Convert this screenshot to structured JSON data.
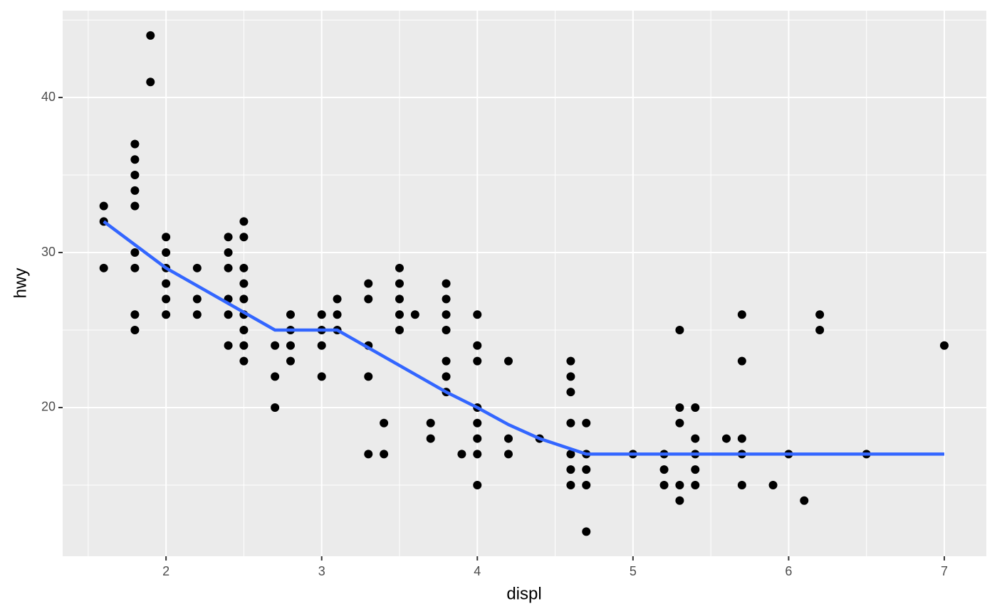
{
  "chart_data": {
    "type": "scatter",
    "x_label": "displ",
    "y_label": "hwy",
    "xlim": [
      1.336,
      7.27
    ],
    "ylim": [
      10.41,
      45.6
    ],
    "xticks": [
      2,
      3,
      4,
      5,
      6,
      7
    ],
    "yticks": [
      20,
      30,
      40
    ],
    "xminor": [
      1.5,
      2.5,
      3.5,
      4.5,
      5.5,
      6.5
    ],
    "yminor": [
      15,
      25,
      35,
      45
    ],
    "grid": true,
    "series": [
      {
        "type": "scatter",
        "color": "#000000",
        "x": [
          1.6,
          1.6,
          1.6,
          1.8,
          1.8,
          1.8,
          1.8,
          1.8,
          1.8,
          1.8,
          1.8,
          1.8,
          1.9,
          1.9,
          2.0,
          2.0,
          2.0,
          2.0,
          2.0,
          2.0,
          2.2,
          2.2,
          2.2,
          2.4,
          2.4,
          2.4,
          2.4,
          2.4,
          2.4,
          2.5,
          2.5,
          2.5,
          2.5,
          2.5,
          2.5,
          2.5,
          2.5,
          2.5,
          2.7,
          2.7,
          2.7,
          2.8,
          2.8,
          2.8,
          2.8,
          3.0,
          3.0,
          3.0,
          3.0,
          3.1,
          3.1,
          3.1,
          3.3,
          3.3,
          3.3,
          3.3,
          3.3,
          3.4,
          3.4,
          3.5,
          3.5,
          3.5,
          3.5,
          3.5,
          3.6,
          3.7,
          3.7,
          3.8,
          3.8,
          3.8,
          3.8,
          3.8,
          3.8,
          3.8,
          3.9,
          4.0,
          4.0,
          4.0,
          4.0,
          4.0,
          4.0,
          4.0,
          4.0,
          4.2,
          4.2,
          4.2,
          4.4,
          4.6,
          4.6,
          4.6,
          4.6,
          4.6,
          4.6,
          4.6,
          4.7,
          4.7,
          4.7,
          4.7,
          4.7,
          5.0,
          5.2,
          5.2,
          5.2,
          5.3,
          5.3,
          5.3,
          5.3,
          5.3,
          5.4,
          5.4,
          5.4,
          5.4,
          5.4,
          5.6,
          5.7,
          5.7,
          5.7,
          5.7,
          5.7,
          5.9,
          6.0,
          6.1,
          6.2,
          6.2,
          6.5,
          7.0
        ],
        "values": [
          33,
          32,
          29,
          37,
          36,
          35,
          34,
          33,
          30,
          29,
          26,
          25,
          44,
          41,
          31,
          30,
          29,
          28,
          27,
          26,
          29,
          27,
          26,
          31,
          30,
          29,
          27,
          26,
          24,
          32,
          31,
          29,
          28,
          27,
          26,
          25,
          24,
          23,
          24,
          22,
          20,
          26,
          25,
          24,
          23,
          26,
          25,
          24,
          22,
          27,
          26,
          25,
          28,
          27,
          24,
          22,
          17,
          19,
          17,
          29,
          28,
          27,
          26,
          25,
          26,
          19,
          18,
          28,
          27,
          26,
          25,
          23,
          22,
          21,
          17,
          26,
          24,
          23,
          20,
          19,
          18,
          17,
          15,
          23,
          18,
          17,
          18,
          23,
          22,
          21,
          19,
          17,
          16,
          15,
          19,
          17,
          16,
          15,
          12,
          17,
          17,
          16,
          15,
          25,
          20,
          19,
          15,
          14,
          20,
          18,
          17,
          16,
          15,
          18,
          26,
          23,
          18,
          17,
          15,
          15,
          17,
          14,
          26,
          25,
          17,
          24
        ]
      },
      {
        "type": "line",
        "color": "#3366ff",
        "x": [
          1.6,
          2.0,
          2.7,
          3.1,
          3.8,
          4.0,
          4.2,
          4.4,
          4.7,
          7.0
        ],
        "values": [
          32,
          29,
          25,
          25,
          21,
          20,
          18.9,
          18,
          17,
          17
        ]
      }
    ]
  }
}
